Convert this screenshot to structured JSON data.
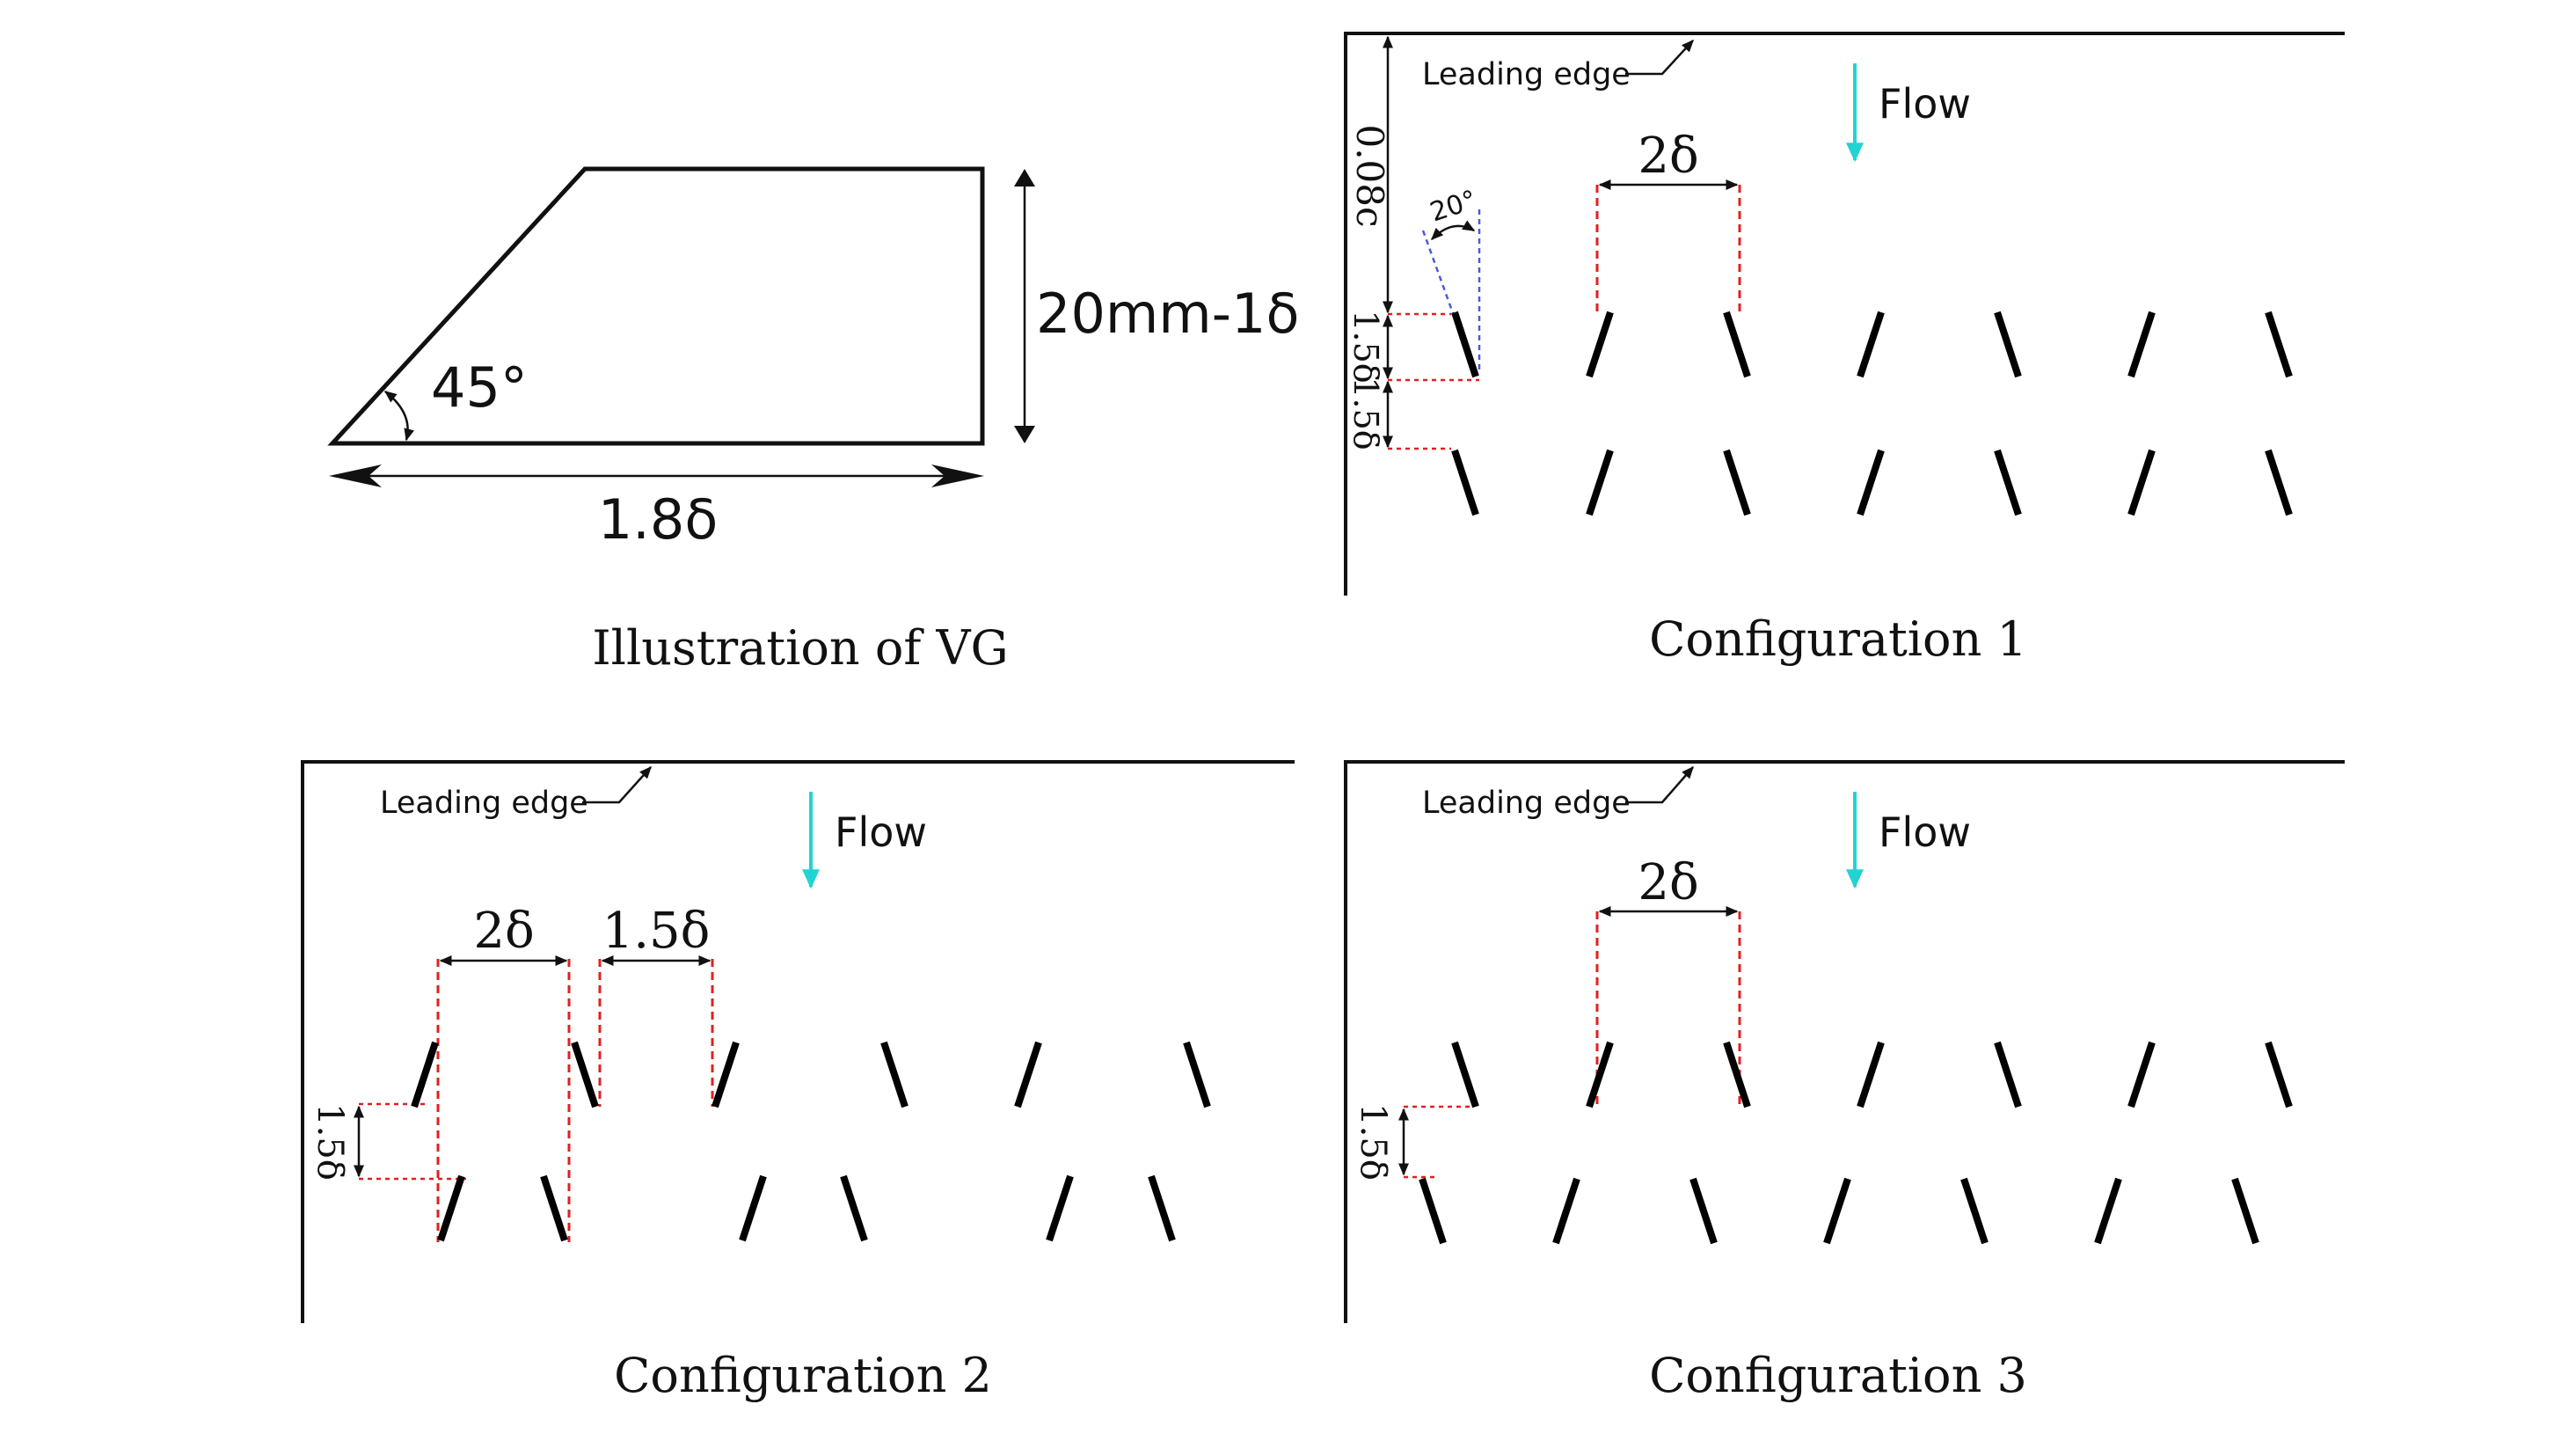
{
  "vg_illustration": {
    "angle_label": "45°",
    "height_label": "20mm-1δ",
    "length_label": "1.8δ",
    "caption": "Illustration of VG"
  },
  "panels": [
    {
      "id": "config1",
      "leading_edge_label": "Leading edge",
      "flow_label": "Flow",
      "spacing_label": "2δ",
      "angle_label": "20°",
      "chord_offset_label": "0.08c",
      "row_gap_labels": [
        "1.5δ",
        "1.5δ"
      ],
      "caption": "Configuration 1"
    },
    {
      "id": "config2",
      "leading_edge_label": "Leading edge",
      "flow_label": "Flow",
      "spacing_label": "2δ",
      "pair_gap_label": "1.5δ",
      "row_gap_label": "1.5δ",
      "caption": "Configuration 2"
    },
    {
      "id": "config3",
      "leading_edge_label": "Leading edge",
      "flow_label": "Flow",
      "spacing_label": "2δ",
      "row_gap_label": "1.5δ",
      "caption": "Configuration 3"
    }
  ],
  "colors": {
    "flow_arrow": "#22d3d3",
    "dimension_dash": "#e02020",
    "angle_guide": "#4a5bd6",
    "ink": "#111111"
  }
}
